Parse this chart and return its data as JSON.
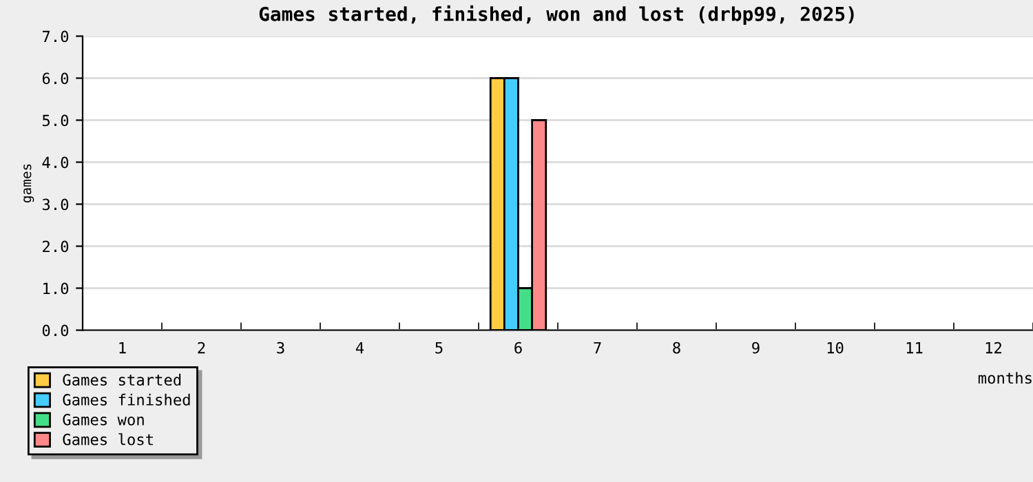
{
  "chart_data": {
    "type": "bar",
    "title": "Games started, finished, won and lost (drbp99, 2025)",
    "xlabel": "months",
    "ylabel": "games",
    "categories": [
      "1",
      "2",
      "3",
      "4",
      "5",
      "6",
      "7",
      "8",
      "9",
      "10",
      "11",
      "12"
    ],
    "series": [
      {
        "name": "Games started",
        "color": "#ffcc44",
        "values": [
          0,
          0,
          0,
          0,
          0,
          6,
          0,
          0,
          0,
          0,
          0,
          0
        ]
      },
      {
        "name": "Games finished",
        "color": "#44ccff",
        "values": [
          0,
          0,
          0,
          0,
          0,
          6,
          0,
          0,
          0,
          0,
          0,
          0
        ]
      },
      {
        "name": "Games won",
        "color": "#44dd88",
        "values": [
          0,
          0,
          0,
          0,
          0,
          1,
          0,
          0,
          0,
          0,
          0,
          0
        ]
      },
      {
        "name": "Games lost",
        "color": "#ff8888",
        "values": [
          0,
          0,
          0,
          0,
          0,
          5,
          0,
          0,
          0,
          0,
          0,
          0
        ]
      }
    ],
    "ylim": [
      0,
      7
    ],
    "yticks": [
      {
        "value": 0,
        "label": "0.0"
      },
      {
        "value": 1,
        "label": "1.0"
      },
      {
        "value": 2,
        "label": "2.0"
      },
      {
        "value": 3,
        "label": "3.0"
      },
      {
        "value": 4,
        "label": "4.0"
      },
      {
        "value": 5,
        "label": "5.0"
      },
      {
        "value": 6,
        "label": "6.0"
      },
      {
        "value": 7,
        "label": "7.0"
      }
    ],
    "grid": "y",
    "legend": "bottom left"
  }
}
